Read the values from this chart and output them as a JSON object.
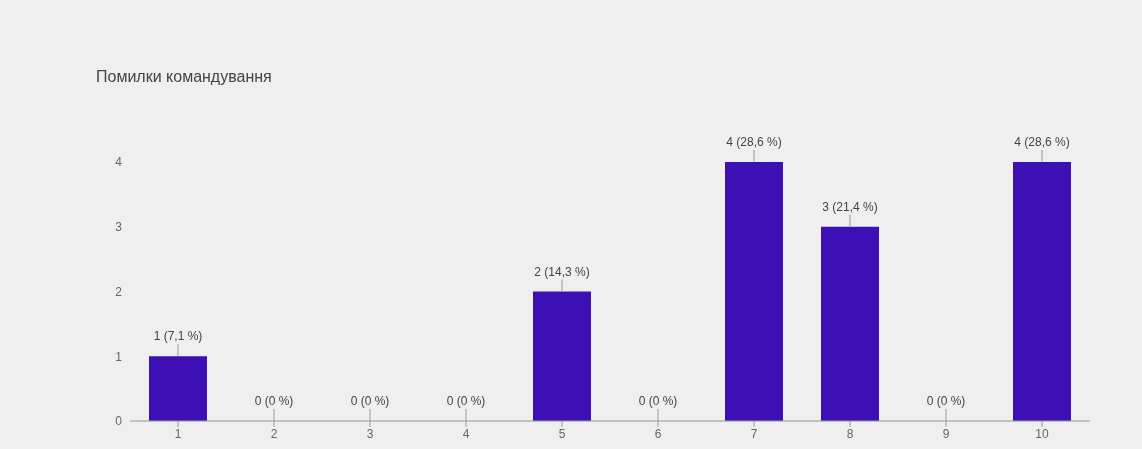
{
  "chart_data": {
    "type": "bar",
    "title": "Помилки командування",
    "categories": [
      "1",
      "2",
      "3",
      "4",
      "5",
      "6",
      "7",
      "8",
      "9",
      "10"
    ],
    "values": [
      1,
      0,
      0,
      0,
      2,
      0,
      4,
      3,
      0,
      4
    ],
    "value_labels": [
      "1 (7,1 %)",
      "0 (0 %)",
      "0 (0 %)",
      "0 (0 %)",
      "2 (14,3 %)",
      "0 (0 %)",
      "4 (28,6 %)",
      "3 (21,4 %)",
      "0 (0 %)",
      "4 (28,6 %)"
    ],
    "color": "#3d10b5",
    "ylim": [
      0,
      4
    ],
    "yticks": [
      0,
      1,
      2,
      3,
      4
    ]
  }
}
